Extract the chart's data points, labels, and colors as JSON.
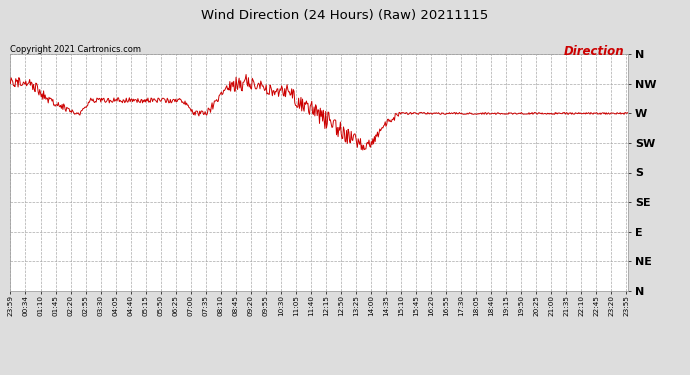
{
  "title": "Wind Direction (24 Hours) (Raw) 20211115",
  "copyright": "Copyright 2021 Cartronics.com",
  "legend_label": "Direction",
  "line_color": "#cc0000",
  "legend_color": "#cc0000",
  "copyright_color": "#000000",
  "title_color": "#000000",
  "bg_color": "#dddddd",
  "plot_bg_color": "#ffffff",
  "grid_color": "#aaaaaa",
  "ytick_labels": [
    "N",
    "NW",
    "W",
    "SW",
    "S",
    "SE",
    "E",
    "NE",
    "N"
  ],
  "ytick_values": [
    360,
    315,
    270,
    225,
    180,
    135,
    90,
    45,
    0
  ],
  "ylim": [
    0,
    360
  ],
  "x_labels": [
    "23:59",
    "00:34",
    "01:10",
    "01:45",
    "02:20",
    "02:55",
    "03:30",
    "04:05",
    "04:40",
    "05:15",
    "05:50",
    "06:25",
    "07:00",
    "07:35",
    "08:10",
    "08:45",
    "09:20",
    "09:55",
    "10:30",
    "11:05",
    "11:40",
    "12:15",
    "12:50",
    "13:25",
    "14:00",
    "14:35",
    "15:10",
    "15:45",
    "16:20",
    "16:55",
    "17:30",
    "18:05",
    "18:40",
    "19:15",
    "19:50",
    "20:25",
    "21:00",
    "21:35",
    "22:10",
    "22:45",
    "23:20",
    "23:55"
  ],
  "x_tick_minutes": [
    0,
    35,
    71,
    106,
    141,
    176,
    211,
    246,
    281,
    316,
    351,
    386,
    421,
    456,
    491,
    526,
    561,
    596,
    631,
    666,
    701,
    736,
    771,
    806,
    841,
    876,
    911,
    946,
    981,
    1016,
    1051,
    1086,
    1121,
    1156,
    1191,
    1226,
    1261,
    1296,
    1331,
    1366,
    1401,
    1436
  ]
}
